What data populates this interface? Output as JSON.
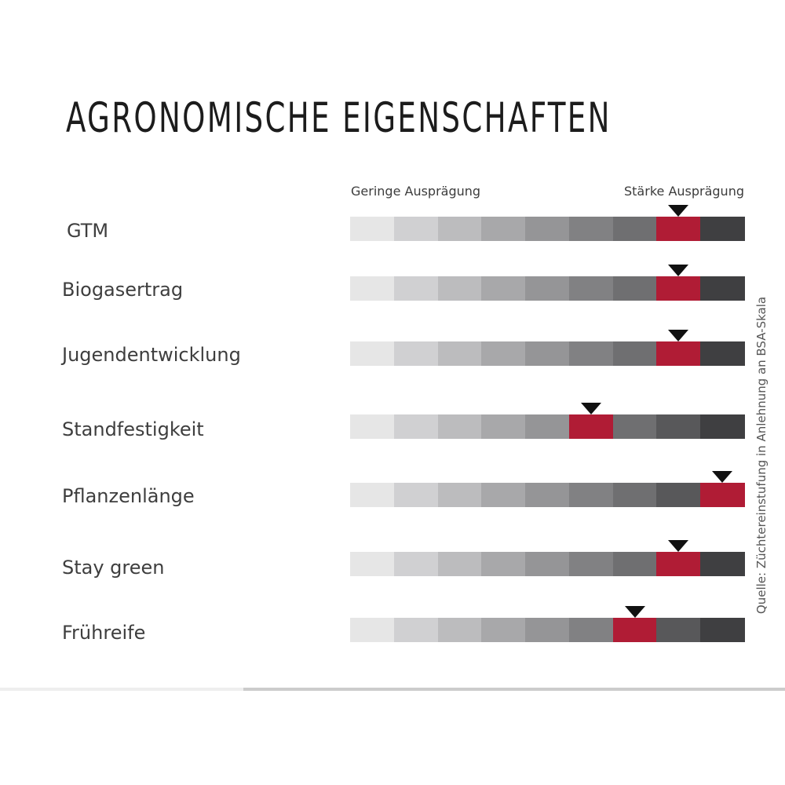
{
  "chart_data": {
    "type": "rating-scale",
    "title": "AGRONOMISCHE EIGENSCHAFTEN",
    "scale_low_label": "Geringe Ausprägung",
    "scale_high_label": "Stärke Ausprägung",
    "scale_max": 9,
    "source_note": "Quelle: Züchtereinstufung in Anlehnung an BSA-Skala",
    "colors": {
      "highlight": "#b01c35",
      "marker": "#111111",
      "gradient": [
        "#e6e6e6",
        "#d0d0d2",
        "#bcbcbe",
        "#a8a8aa",
        "#959597",
        "#818183",
        "#6f6f71",
        "#58585a",
        "#3f3f41"
      ]
    },
    "rows": [
      {
        "label": "GTM",
        "value": 8
      },
      {
        "label": "Biogasertrag",
        "value": 8
      },
      {
        "label": "Jugendentwicklung",
        "value": 8
      },
      {
        "label": "Standfestigkeit",
        "value": 6
      },
      {
        "label": "Pflanzenlänge",
        "value": 9
      },
      {
        "label": "Stay green",
        "value": 8
      },
      {
        "label": "Frühreife",
        "value": 7
      }
    ]
  }
}
